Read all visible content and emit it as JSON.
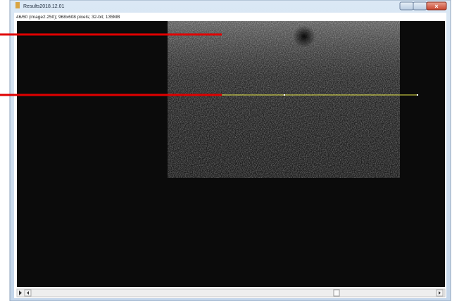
{
  "window": {
    "title": "Results2018.12.01",
    "status": "46/60 (image2.250); 968x608 pixels; 32-bit; 135MB"
  }
}
